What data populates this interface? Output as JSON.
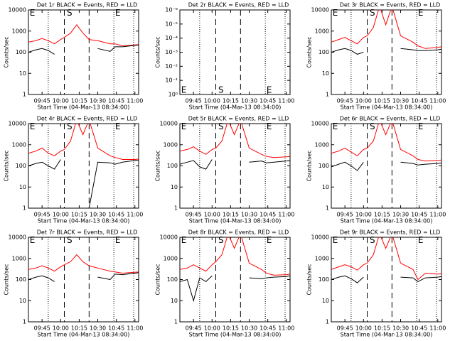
{
  "chart_data": [
    {
      "type": "line",
      "title": "Det 1r BLACK = Events, RED = LLD",
      "ylabel": "Counts/sec",
      "xlabel": "Start Time (04-Mar-13 08:34:00)",
      "ylog": true,
      "x": [
        "09:34",
        "09:40",
        "09:45",
        "09:50",
        "09:55",
        "10:00",
        "10:03",
        "10:08",
        "10:13",
        "10:18",
        "10:23",
        "10:30",
        "10:40",
        "10:44",
        "10:50",
        "11:00",
        "11:03"
      ],
      "xlim": [
        "09:34",
        "11:03"
      ],
      "xticks": [
        "09:45",
        "10:00",
        "10:15",
        "10:30",
        "10:45",
        "11:00"
      ],
      "ylim": [
        1,
        10000
      ],
      "yticks": [
        1,
        10,
        100,
        1000,
        10000
      ],
      "dotted_x": [
        "09:50",
        "10:43",
        "10:59"
      ],
      "dashed_x": [
        "10:03",
        "10:23"
      ],
      "annotations": [
        {
          "text": "E",
          "x": "09:35",
          "y": 7000
        },
        {
          "text": "S",
          "x": "10:05",
          "y": 7000
        },
        {
          "text": "E",
          "x": "10:44",
          "y": 7000
        }
      ],
      "series": [
        {
          "color": "#ff0000",
          "values": [
            300,
            350,
            450,
            350,
            250,
            400,
            500,
            800,
            2000,
            800,
            400,
            350,
            250,
            250,
            200,
            220,
            230
          ]
        },
        {
          "color": "#000000",
          "values": [
            100,
            130,
            150,
            120,
            80,
            null,
            null,
            null,
            null,
            null,
            null,
            150,
            110,
            180,
            180,
            210,
            220
          ]
        }
      ]
    },
    {
      "type": "line",
      "title": "Det 2r BLACK = Events, RED = LLD",
      "ylabel": "Counts/sec",
      "xlabel": "Start Time (04-Mar-13 08:34:00)",
      "ylog": true,
      "x": [],
      "xlim": [
        "09:34",
        "11:03"
      ],
      "xticks": [
        "09:45",
        "10:00",
        "10:15",
        "10:30",
        "10:45",
        "11:00"
      ],
      "ylim": [
        1,
        1e-06
      ],
      "yticks": [
        {
          "value": 1,
          "label": "10⁰"
        },
        {
          "value": 0.1,
          "label": "10⁻¹"
        },
        {
          "value": 0.01,
          "label": "10⁻²"
        },
        {
          "value": 0.001,
          "label": "10⁻³"
        },
        {
          "value": 0.0001,
          "label": "10⁻⁴"
        },
        {
          "value": 1e-05,
          "label": "10⁻⁵"
        },
        {
          "value": 1e-06,
          "label": "10⁻⁶"
        }
      ],
      "dotted_x": [
        "09:50",
        "10:43",
        "10:59"
      ],
      "dashed_x": [
        "10:03",
        "10:23"
      ],
      "annotations": [
        {
          "text": "E",
          "x": "09:35",
          "y": 0.5
        },
        {
          "text": "S",
          "x": "10:05",
          "y": 0.5
        },
        {
          "text": "E",
          "x": "10:44",
          "y": 0.5
        }
      ],
      "series": []
    },
    {
      "type": "line",
      "title": "Det 3r BLACK = Events, RED = LLD",
      "ylabel": "Counts/sec",
      "xlabel": "Start Time (04-Mar-13 08:34:00)",
      "ylog": true,
      "x": [
        "09:34",
        "09:40",
        "09:45",
        "09:50",
        "09:55",
        "10:00",
        "10:03",
        "10:08",
        "10:13",
        "10:18",
        "10:23",
        "10:30",
        "10:40",
        "10:44",
        "10:50",
        "11:00",
        "11:03"
      ],
      "xlim": [
        "09:34",
        "11:03"
      ],
      "xticks": [
        "09:45",
        "10:00",
        "10:15",
        "10:30",
        "10:45",
        "11:00"
      ],
      "ylim": [
        1,
        10000
      ],
      "yticks": [
        1,
        10,
        100,
        1000,
        10000
      ],
      "dotted_x": [
        "09:50",
        "10:43",
        "10:59"
      ],
      "dashed_x": [
        "10:03",
        "10:23"
      ],
      "annotations": [
        {
          "text": "E",
          "x": "09:35",
          "y": 7000
        },
        {
          "text": "S",
          "x": "10:05",
          "y": 7000
        },
        {
          "text": "E",
          "x": "10:44",
          "y": 7000
        }
      ],
      "series": [
        {
          "color": "#ff0000",
          "values": [
            300,
            400,
            500,
            350,
            250,
            500,
            600,
            1500,
            15000,
            2000,
            15000,
            600,
            300,
            200,
            150,
            170,
            180
          ]
        },
        {
          "color": "#000000",
          "values": [
            100,
            130,
            150,
            120,
            80,
            100,
            null,
            null,
            null,
            null,
            null,
            150,
            130,
            120,
            120,
            130,
            140
          ]
        }
      ]
    },
    {
      "type": "line",
      "title": "Det 4r BLACK = Events, RED = LLD",
      "ylabel": "Counts/sec",
      "xlabel": "Start Time (04-Mar-13 08:34:00)",
      "ylog": true,
      "x": [
        "09:34",
        "09:40",
        "09:45",
        "09:50",
        "09:55",
        "10:00",
        "10:03",
        "10:08",
        "10:13",
        "10:18",
        "10:23",
        "10:30",
        "10:40",
        "10:44",
        "10:50",
        "11:00",
        "11:03"
      ],
      "xlim": [
        "09:34",
        "11:03"
      ],
      "xticks": [
        "09:45",
        "10:00",
        "10:15",
        "10:30",
        "10:45",
        "11:00"
      ],
      "ylim": [
        1,
        10000
      ],
      "yticks": [
        1,
        10,
        100,
        1000,
        10000
      ],
      "dotted_x": [
        "09:50",
        "10:43",
        "10:59"
      ],
      "dashed_x": [
        "10:03",
        "10:23"
      ],
      "annotations": [
        {
          "text": "E",
          "x": "09:35",
          "y": 7000
        },
        {
          "text": "S",
          "x": "10:05",
          "y": 7000
        },
        {
          "text": "E",
          "x": "10:44",
          "y": 7000
        }
      ],
      "series": [
        {
          "color": "#ff0000",
          "values": [
            400,
            500,
            700,
            400,
            300,
            500,
            600,
            1500,
            15000,
            3000,
            15000,
            700,
            300,
            250,
            200,
            200,
            210
          ]
        },
        {
          "color": "#000000",
          "values": [
            100,
            130,
            150,
            100,
            70,
            200,
            null,
            null,
            null,
            null,
            1,
            150,
            140,
            120,
            150,
            180,
            190
          ]
        }
      ]
    },
    {
      "type": "line",
      "title": "Det 5r BLACK = Events, RED = LLD",
      "ylabel": "Counts/sec",
      "xlabel": "Start Time (04-Mar-13 08:34:00)",
      "ylog": true,
      "x": [
        "09:34",
        "09:40",
        "09:45",
        "09:50",
        "09:55",
        "10:00",
        "10:03",
        "10:08",
        "10:13",
        "10:18",
        "10:23",
        "10:30",
        "10:40",
        "10:44",
        "10:50",
        "11:00",
        "11:03"
      ],
      "xlim": [
        "09:34",
        "11:03"
      ],
      "xticks": [
        "09:45",
        "10:00",
        "10:15",
        "10:30",
        "10:45",
        "11:00"
      ],
      "ylim": [
        1,
        10000
      ],
      "yticks": [
        1,
        10,
        100,
        1000,
        10000
      ],
      "dotted_x": [
        "09:50",
        "10:43",
        "10:59"
      ],
      "dashed_x": [
        "10:03",
        "10:23"
      ],
      "annotations": [
        {
          "text": "E",
          "x": "09:35",
          "y": 7000
        },
        {
          "text": "S",
          "x": "10:05",
          "y": 7000
        },
        {
          "text": "E",
          "x": "10:44",
          "y": 7000
        }
      ],
      "series": [
        {
          "color": "#ff0000",
          "values": [
            500,
            600,
            800,
            500,
            350,
            600,
            700,
            1500,
            15000,
            3000,
            15000,
            700,
            350,
            280,
            250,
            270,
            280
          ]
        },
        {
          "color": "#000000",
          "values": [
            120,
            150,
            180,
            90,
            70,
            200,
            null,
            null,
            null,
            null,
            null,
            150,
            170,
            140,
            150,
            170,
            180
          ]
        }
      ]
    },
    {
      "type": "line",
      "title": "Det 6r BLACK = Events, RED = LLD",
      "ylabel": "Counts/sec",
      "xlabel": "Start Time (04-Mar-13 08:34:00)",
      "ylog": true,
      "x": [
        "09:34",
        "09:40",
        "09:45",
        "09:50",
        "09:55",
        "10:00",
        "10:03",
        "10:08",
        "10:13",
        "10:18",
        "10:23",
        "10:30",
        "10:40",
        "10:44",
        "10:50",
        "11:00",
        "11:03"
      ],
      "xlim": [
        "09:34",
        "11:03"
      ],
      "xticks": [
        "09:45",
        "10:00",
        "10:15",
        "10:30",
        "10:45",
        "11:00"
      ],
      "ylim": [
        1,
        10000
      ],
      "yticks": [
        1,
        10,
        100,
        1000,
        10000
      ],
      "dotted_x": [
        "09:50",
        "10:43",
        "10:59"
      ],
      "dashed_x": [
        "10:03",
        "10:23"
      ],
      "annotations": [
        {
          "text": "E",
          "x": "09:35",
          "y": 7000
        },
        {
          "text": "S",
          "x": "10:05",
          "y": 7000
        },
        {
          "text": "E",
          "x": "10:44",
          "y": 7000
        }
      ],
      "series": [
        {
          "color": "#ff0000",
          "values": [
            400,
            500,
            700,
            450,
            300,
            600,
            700,
            1500,
            15000,
            3000,
            15000,
            600,
            300,
            200,
            170,
            180,
            190
          ]
        },
        {
          "color": "#000000",
          "values": [
            90,
            120,
            150,
            100,
            60,
            150,
            null,
            null,
            null,
            null,
            null,
            150,
            130,
            110,
            120,
            130,
            140
          ]
        }
      ]
    },
    {
      "type": "line",
      "title": "Det 7r BLACK = Events, RED = LLD",
      "ylabel": "Counts/sec",
      "xlabel": "Start Time (04-Mar-13 08:34:00)",
      "ylog": true,
      "x": [
        "09:34",
        "09:40",
        "09:45",
        "09:50",
        "09:55",
        "10:00",
        "10:03",
        "10:08",
        "10:13",
        "10:18",
        "10:23",
        "10:30",
        "10:40",
        "10:44",
        "10:50",
        "11:00",
        "11:03"
      ],
      "xlim": [
        "09:34",
        "11:03"
      ],
      "xticks": [
        "09:45",
        "10:00",
        "10:15",
        "10:30",
        "10:45",
        "11:00"
      ],
      "ylim": [
        1,
        10000
      ],
      "yticks": [
        1,
        10,
        100,
        1000,
        10000
      ],
      "dotted_x": [
        "09:50",
        "10:43",
        "10:59"
      ],
      "dashed_x": [
        "10:03",
        "10:23"
      ],
      "annotations": [
        {
          "text": "E",
          "x": "09:35",
          "y": 7000
        },
        {
          "text": "S",
          "x": "10:05",
          "y": 7000
        },
        {
          "text": "E",
          "x": "10:44",
          "y": 7000
        }
      ],
      "series": [
        {
          "color": "#ff0000",
          "values": [
            300,
            350,
            450,
            350,
            250,
            400,
            500,
            700,
            1500,
            700,
            450,
            350,
            250,
            230,
            200,
            220,
            230
          ]
        },
        {
          "color": "#000000",
          "values": [
            100,
            130,
            150,
            120,
            80,
            null,
            null,
            null,
            null,
            null,
            null,
            130,
            100,
            180,
            170,
            200,
            210
          ]
        }
      ]
    },
    {
      "type": "line",
      "title": "Det 8r BLACK = Events, RED = LLD",
      "ylabel": "Counts/sec",
      "xlabel": "Start Time (04-Mar-13 08:34:00)",
      "ylog": true,
      "x": [
        "09:34",
        "09:40",
        "09:45",
        "09:50",
        "09:55",
        "10:00",
        "10:03",
        "10:08",
        "10:13",
        "10:18",
        "10:23",
        "10:30",
        "10:40",
        "10:44",
        "10:50",
        "11:00",
        "11:03"
      ],
      "xlim": [
        "09:34",
        "11:03"
      ],
      "xticks": [
        "09:45",
        "10:00",
        "10:15",
        "10:30",
        "10:45",
        "11:00"
      ],
      "ylim": [
        1,
        10000
      ],
      "yticks": [
        1,
        10,
        100,
        1000,
        10000
      ],
      "dotted_x": [
        "09:50",
        "10:43",
        "10:59"
      ],
      "dashed_x": [
        "10:03",
        "10:23"
      ],
      "annotations": [
        {
          "text": "E",
          "x": "09:35",
          "y": 7000
        },
        {
          "text": "S",
          "x": "10:05",
          "y": 7000
        },
        {
          "text": "E",
          "x": "10:44",
          "y": 7000
        }
      ],
      "series": [
        {
          "color": "#ff0000",
          "values": [
            300,
            350,
            500,
            350,
            250,
            500,
            700,
            1500,
            15000,
            3000,
            15000,
            600,
            300,
            200,
            160,
            170,
            180
          ]
        },
        {
          "color": "#000000",
          "values": [
            80,
            100,
            10,
            120,
            80,
            150,
            null,
            null,
            null,
            null,
            null,
            120,
            110,
            120,
            130,
            140,
            150
          ]
        }
      ]
    },
    {
      "type": "line",
      "title": "Det 9r BLACK = Events, RED = LLD",
      "ylabel": "Counts/sec",
      "xlabel": "Start Time (04-Mar-13 08:34:00)",
      "ylog": true,
      "x": [
        "09:34",
        "09:40",
        "09:45",
        "09:50",
        "09:55",
        "10:00",
        "10:03",
        "10:08",
        "10:13",
        "10:18",
        "10:23",
        "10:30",
        "10:40",
        "10:44",
        "10:50",
        "11:00",
        "11:03"
      ],
      "xlim": [
        "09:34",
        "11:03"
      ],
      "xticks": [
        "09:45",
        "10:00",
        "10:15",
        "10:30",
        "10:45",
        "11:00"
      ],
      "ylim": [
        1,
        10000
      ],
      "yticks": [
        1,
        10,
        100,
        1000,
        10000
      ],
      "dotted_x": [
        "09:50",
        "10:43",
        "10:59"
      ],
      "dashed_x": [
        "10:03",
        "10:23"
      ],
      "annotations": [
        {
          "text": "E",
          "x": "09:35",
          "y": 7000
        },
        {
          "text": "S",
          "x": "10:05",
          "y": 7000
        },
        {
          "text": "E",
          "x": "10:44",
          "y": 7000
        }
      ],
      "series": [
        {
          "color": "#ff0000",
          "values": [
            300,
            400,
            500,
            400,
            280,
            500,
            600,
            1500,
            15000,
            3000,
            15000,
            600,
            300,
            100,
            200,
            180,
            190
          ]
        },
        {
          "color": "#000000",
          "values": [
            100,
            130,
            150,
            110,
            70,
            130,
            null,
            null,
            null,
            null,
            null,
            130,
            120,
            80,
            120,
            130,
            140
          ]
        }
      ]
    }
  ]
}
